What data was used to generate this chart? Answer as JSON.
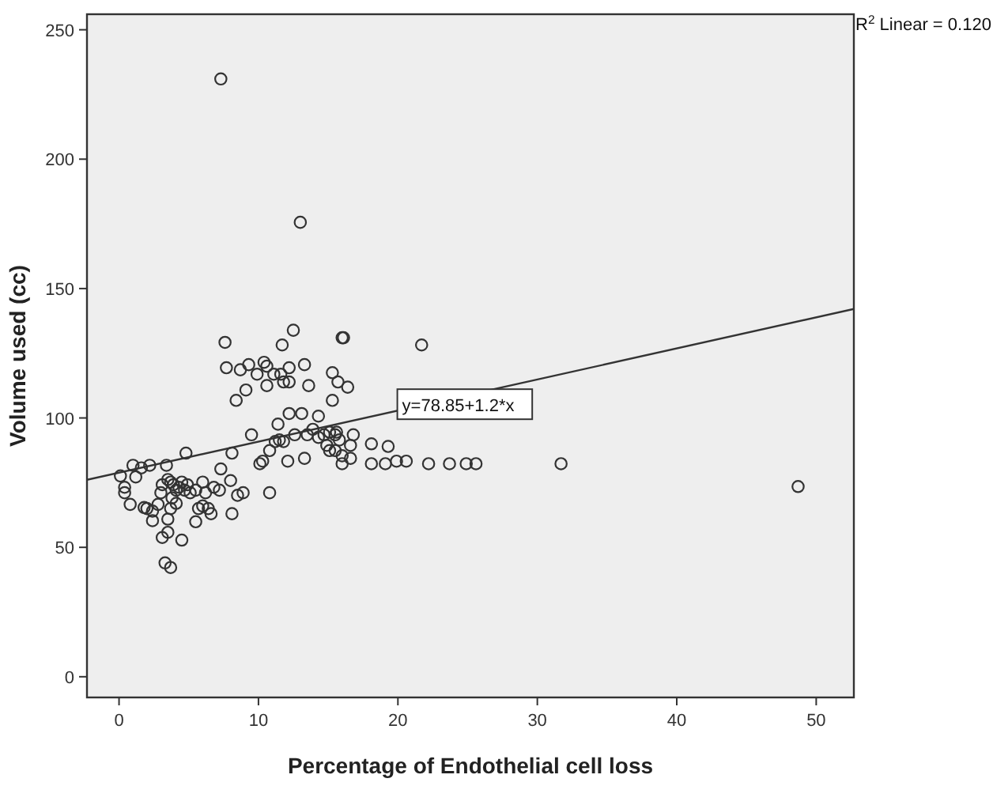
{
  "chart_data": {
    "type": "scatter",
    "xlabel": "Percentage of Endothelial cell loss",
    "ylabel": "Volume used (cc)",
    "xlim": [
      -2.3,
      52.7
    ],
    "ylim": [
      -8,
      256
    ],
    "xticks": [
      0,
      10,
      20,
      30,
      40,
      50
    ],
    "yticks": [
      0,
      50,
      100,
      150,
      200,
      250
    ],
    "grid": false,
    "annotations": [
      "R$^{2}$ Linear = 0.120",
      {
        "text": "y=78.85+1.2*x",
        "x": 20.3,
        "y": 105
      }
    ],
    "series": [
      {
        "marker": "circle",
        "color": "#333333",
        "x": [
          0.1,
          1.0,
          1.6,
          2.2,
          1.2,
          0.4,
          0.4,
          0.8,
          1.8,
          2.0,
          2.4,
          2.4,
          2.8,
          3.0,
          3.1,
          3.4,
          3.5,
          3.7,
          3.9,
          4.1,
          3.8,
          4.3,
          4.5,
          4.7,
          4.9,
          5.1,
          5.5,
          4.1,
          3.7,
          3.5,
          3.5,
          3.1,
          4.5,
          3.3,
          3.7,
          4.8,
          5.7,
          5.5,
          6.0,
          6.4,
          6.6,
          6.0,
          6.2,
          6.8,
          7.2,
          7.3,
          8.0,
          8.1,
          8.5,
          8.9,
          8.1,
          10.8,
          10.1,
          10.3,
          10.8,
          11.2,
          11.5,
          11.8,
          12.1,
          9.5,
          12.2,
          13.1,
          14.3,
          11.4,
          12.6,
          13.3,
          13.5,
          13.9,
          14.3,
          14.7,
          15.1,
          15.5,
          15.6,
          15.8,
          14.9,
          15.1,
          15.5,
          16.0,
          16.0,
          16.6,
          16.8,
          16.6,
          18.1,
          19.3,
          18.1,
          19.1,
          19.9,
          20.6,
          22.2,
          23.7,
          24.9,
          25.6,
          31.7,
          48.7,
          15.3,
          16.4,
          15.7,
          8.4,
          9.1,
          7.3,
          13.0,
          12.5,
          7.6,
          11.7,
          16.0,
          16.1,
          21.7,
          7.7,
          8.7,
          9.3,
          9.9,
          10.4,
          10.6,
          11.1,
          11.6,
          12.2,
          12.2,
          13.3,
          10.6,
          11.8,
          13.6,
          15.3
        ],
        "values": [
          77.6,
          81.7,
          80.7,
          81.7,
          77.2,
          73.2,
          71.1,
          66.6,
          65.4,
          65.0,
          64.0,
          60.3,
          66.6,
          71.1,
          74.2,
          81.7,
          76.2,
          75.2,
          74.2,
          72.1,
          69.1,
          73.2,
          75.2,
          72.1,
          74.2,
          71.1,
          72.1,
          67.0,
          65.0,
          60.9,
          55.8,
          53.8,
          52.8,
          44.0,
          42.2,
          86.4,
          65.0,
          59.9,
          66.0,
          65.0,
          63.0,
          75.2,
          71.1,
          73.2,
          72.1,
          80.3,
          75.8,
          86.4,
          70.1,
          71.1,
          63.0,
          71.1,
          82.3,
          83.3,
          87.4,
          90.9,
          91.5,
          90.9,
          83.3,
          93.5,
          101.7,
          101.7,
          100.7,
          97.6,
          93.5,
          84.4,
          93.5,
          95.6,
          92.5,
          93.5,
          94.5,
          93.5,
          94.5,
          91.5,
          89.4,
          87.4,
          87.4,
          85.4,
          82.3,
          84.4,
          93.5,
          89.4,
          90.0,
          89.0,
          82.3,
          82.3,
          83.3,
          83.3,
          82.3,
          82.3,
          82.3,
          82.3,
          82.3,
          73.5,
          106.8,
          111.9,
          113.9,
          106.8,
          110.8,
          231,
          175.6,
          133.9,
          129.2,
          128.2,
          131.0,
          131.0,
          128.2,
          119.4,
          118.6,
          120.6,
          116.9,
          121.5,
          120.0,
          116.9,
          116.9,
          119.4,
          113.9,
          120.6,
          112.5,
          113.9,
          112.5,
          117.5
        ]
      },
      {
        "type": "line",
        "marker": "none",
        "color": "#333333",
        "x": [
          -2.3,
          52.7
        ],
        "values": [
          76.1,
          142.1
        ]
      }
    ]
  }
}
